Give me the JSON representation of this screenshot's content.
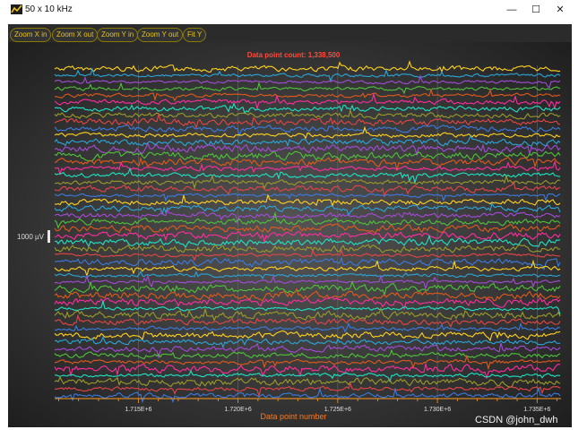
{
  "window": {
    "title": "50 x 10 kHz",
    "controls": {
      "minimize": "—",
      "maximize": "☐",
      "close": "✕"
    }
  },
  "toolbar": {
    "buttons": [
      "Zoom X in",
      "Zoom X out",
      "Zoom Y in",
      "Zoom Y out",
      "Fit Y"
    ]
  },
  "chart_data": {
    "type": "line",
    "title": "Data point count: 1,338,500",
    "xlabel": "Data point number",
    "ylabel": "",
    "scale_bar_label": "1000 µV",
    "x_ticks": [
      "1.715E+6",
      "1.720E+6",
      "1.725E+6",
      "1.730E+6",
      "1.735E+6"
    ],
    "xlim": [
      1710800,
      1736200
    ],
    "channel_count": 50,
    "series_colors": [
      "#ffd21f",
      "#2aa6d9",
      "#a44bd8",
      "#4fc23a",
      "#e05a1c",
      "#ff2da0",
      "#1fe3c4",
      "#9a9a2a",
      "#e64545",
      "#3b7be0"
    ],
    "grid": true,
    "background": "#3a3a3a",
    "title_color": "#ff4a3d",
    "xlabel_color": "#ff7a1a",
    "tick_color": "#ff9a20"
  },
  "watermark": "CSDN @john_dwh"
}
